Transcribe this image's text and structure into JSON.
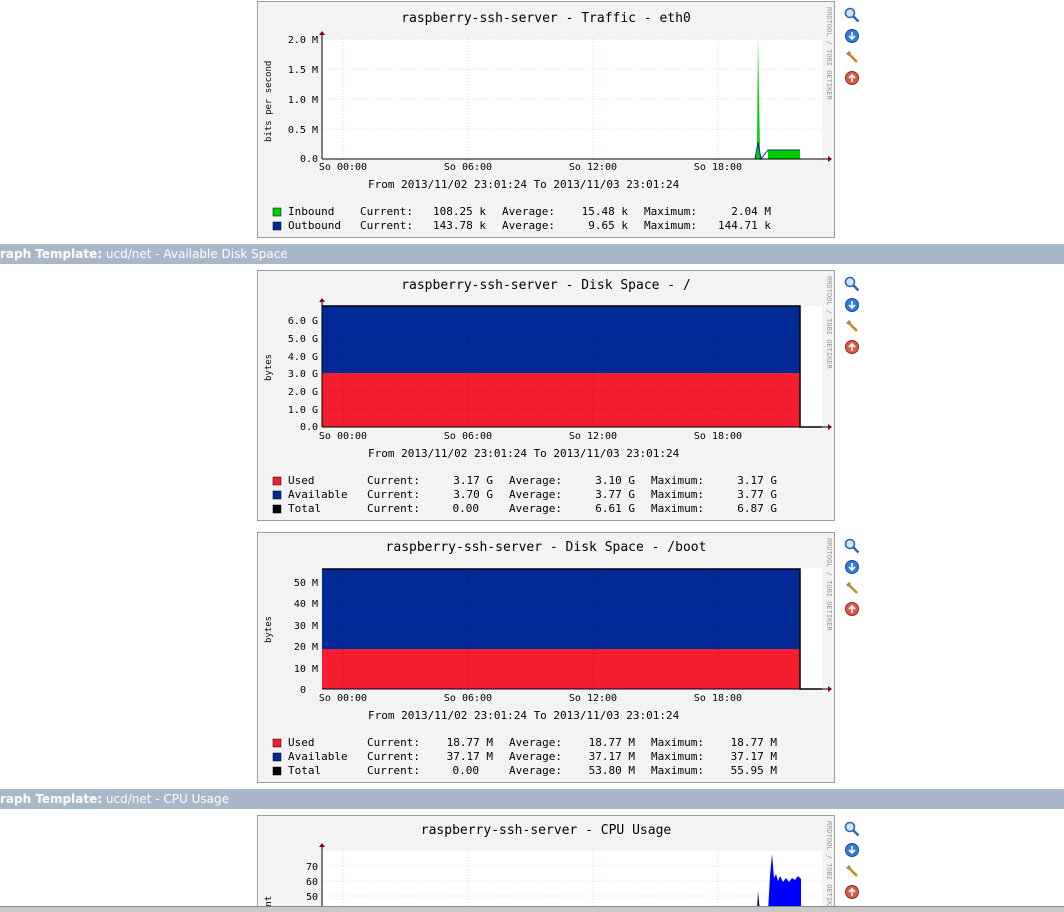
{
  "sections": [
    {
      "prefix": "raph Template:",
      "name": "ucd/net - Available Disk Space"
    },
    {
      "prefix": "raph Template:",
      "name": "ucd/net - CPU Usage"
    }
  ],
  "rrd_credit": "RRDTOOL / TOBI OETIKER",
  "actions": [
    "zoom-icon",
    "download-icon",
    "properties-icon",
    "move-up-icon"
  ],
  "graphs": [
    {
      "title": "raspberry-ssh-server - Traffic - eth0",
      "ylabel": "bits per second",
      "yticks": [
        "2.0 M",
        "1.5 M",
        "1.0 M",
        "0.5 M",
        "0.0"
      ],
      "xticks": [
        "So 00:00",
        "So 06:00",
        "So 12:00",
        "So 18:00"
      ],
      "from_to": "From 2013/11/02 23:01:24 To 2013/11/03 23:01:24",
      "legend": [
        {
          "color": "#00cf00",
          "name": "Inbound",
          "current": "108.25 k",
          "average": "15.48 k",
          "maximum": "2.04 M"
        },
        {
          "color": "#002a97",
          "name": "Outbound",
          "current": "143.78 k",
          "average": "9.65 k",
          "maximum": "144.71 k"
        }
      ]
    },
    {
      "title": "raspberry-ssh-server - Disk Space - /",
      "ylabel": "bytes",
      "yticks": [
        "6.0 G",
        "5.0 G",
        "4.0 G",
        "3.0 G",
        "2.0 G",
        "1.0 G",
        "0.0"
      ],
      "xticks": [
        "So 00:00",
        "So 06:00",
        "So 12:00",
        "So 18:00"
      ],
      "from_to": "From 2013/11/02 23:01:24 To 2013/11/03 23:01:24",
      "legend": [
        {
          "color": "#f51d30",
          "name": "Used",
          "current": "3.17 G",
          "average": "3.10 G",
          "maximum": "3.17 G"
        },
        {
          "color": "#002a97",
          "name": "Available",
          "current": "3.70 G",
          "average": "3.77 G",
          "maximum": "3.77 G"
        },
        {
          "color": "#000000",
          "name": "Total",
          "current": "0.00",
          "average": "6.61 G",
          "maximum": "6.87 G"
        }
      ]
    },
    {
      "title": "raspberry-ssh-server - Disk Space - /boot",
      "ylabel": "bytes",
      "yticks": [
        "50 M",
        "40 M",
        "30 M",
        "20 M",
        "10 M",
        "0"
      ],
      "xticks": [
        "So 00:00",
        "So 06:00",
        "So 12:00",
        "So 18:00"
      ],
      "from_to": "From 2013/11/02 23:01:24 To 2013/11/03 23:01:24",
      "legend": [
        {
          "color": "#f51d30",
          "name": "Used",
          "current": "18.77 M",
          "average": "18.77 M",
          "maximum": "18.77 M"
        },
        {
          "color": "#002a97",
          "name": "Available",
          "current": "37.17 M",
          "average": "37.17 M",
          "maximum": "37.17 M"
        },
        {
          "color": "#000000",
          "name": "Total",
          "current": "0.00",
          "average": "53.80 M",
          "maximum": "55.95 M"
        }
      ]
    },
    {
      "title": "raspberry-ssh-server - CPU Usage",
      "ylabel": "ent",
      "yticks": [
        "70",
        "60",
        "50"
      ],
      "xticks": [],
      "from_to": "",
      "legend": []
    }
  ],
  "legend_labels": {
    "current": "Current:",
    "average": "Average:",
    "maximum": "Maximum:"
  },
  "chart_data": [
    {
      "type": "area",
      "title": "raspberry-ssh-server - Traffic - eth0",
      "ylabel": "bits per second",
      "ylim": [
        0,
        2000000
      ],
      "series": [
        {
          "name": "Inbound",
          "color": "#00cf00",
          "peak": 2040000,
          "current": 108250
        },
        {
          "name": "Outbound",
          "color": "#002a97",
          "current": 143780
        }
      ]
    },
    {
      "type": "area",
      "title": "raspberry-ssh-server - Disk Space - /",
      "ylabel": "bytes",
      "ylim": [
        0,
        6870000000
      ],
      "series": [
        {
          "name": "Used",
          "color": "#f51d30",
          "value": 3170000000
        },
        {
          "name": "Available",
          "color": "#002a97",
          "value": 3700000000
        },
        {
          "name": "Total",
          "color": "#000000",
          "value": 6870000000
        }
      ]
    },
    {
      "type": "area",
      "title": "raspberry-ssh-server - Disk Space - /boot",
      "ylabel": "bytes",
      "ylim": [
        0,
        55950000
      ],
      "series": [
        {
          "name": "Used",
          "color": "#f51d30",
          "value": 18770000
        },
        {
          "name": "Available",
          "color": "#002a97",
          "value": 37170000
        },
        {
          "name": "Total",
          "color": "#000000",
          "value": 55950000
        }
      ]
    }
  ]
}
